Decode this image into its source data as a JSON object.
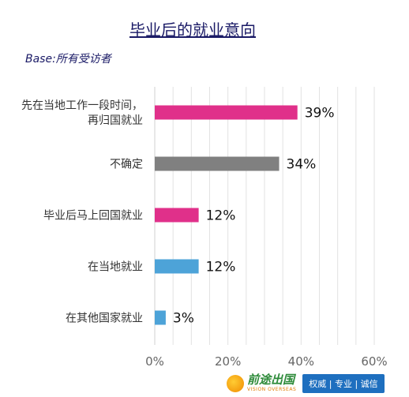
{
  "chart_data": {
    "type": "bar",
    "orientation": "horizontal",
    "title": "毕业后的就业意向",
    "subtitle": "Base:所有受访者",
    "categories": [
      "先在当地工作一段时间，\n再归国就业",
      "不确定",
      "毕业后马上回国就业",
      "在当地就业",
      "在其他国家就业"
    ],
    "values": [
      39,
      34,
      12,
      12,
      3
    ],
    "value_labels": [
      "39%",
      "34%",
      "12%",
      "12%",
      "3%"
    ],
    "bar_colors": [
      "#e0308a",
      "#808080",
      "#e0308a",
      "#4da3d8",
      "#4da3d8"
    ],
    "xlim": [
      0,
      60
    ],
    "xticks": [
      "0%",
      "20%",
      "40%",
      "60%"
    ],
    "grid": true
  },
  "logo": {
    "name_cn": "前途出国",
    "name_en": "VISION OVERSEAS",
    "slogan": "权威 | 专业 | 诚信"
  }
}
